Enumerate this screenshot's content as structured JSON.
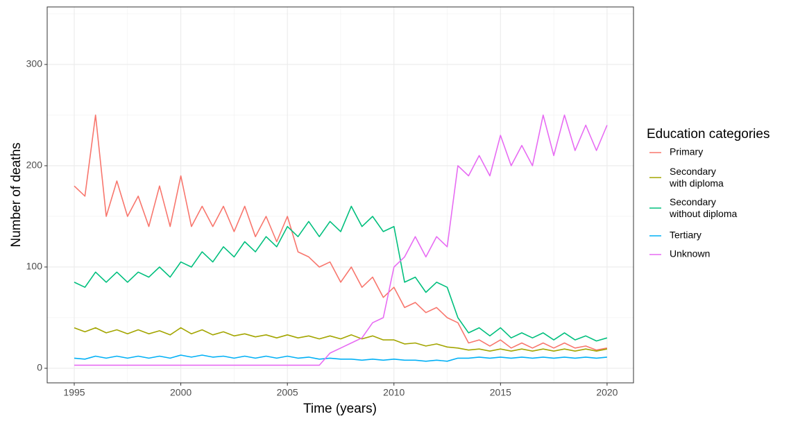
{
  "chart_data": {
    "type": "line",
    "x_label": "Time (years)",
    "y_label": "Number of deaths",
    "legend_title": "Education categories",
    "legend_position": "right",
    "x": [
      1995,
      1995.5,
      1996,
      1996.5,
      1997,
      1997.5,
      1998,
      1998.5,
      1999,
      1999.5,
      2000,
      2000.5,
      2001,
      2001.5,
      2002,
      2002.5,
      2003,
      2003.5,
      2004,
      2004.5,
      2005,
      2005.5,
      2006,
      2006.5,
      2007,
      2007.5,
      2008,
      2008.5,
      2009,
      2009.5,
      2010,
      2010.5,
      2011,
      2011.5,
      2012,
      2012.5,
      2013,
      2013.5,
      2014,
      2014.5,
      2015,
      2015.5,
      2016,
      2016.5,
      2017,
      2017.5,
      2018,
      2018.5,
      2019,
      2019.5,
      2020
    ],
    "series": [
      {
        "name": "Primary",
        "color": "#F8766D",
        "values": [
          180,
          170,
          250,
          150,
          185,
          150,
          170,
          140,
          180,
          140,
          190,
          140,
          160,
          140,
          160,
          135,
          160,
          130,
          150,
          125,
          150,
          115,
          110,
          100,
          105,
          85,
          100,
          80,
          90,
          70,
          80,
          60,
          65,
          55,
          60,
          50,
          45,
          25,
          28,
          22,
          28,
          20,
          25,
          20,
          25,
          20,
          25,
          20,
          22,
          18,
          20
        ]
      },
      {
        "name": "Secondary\nwith diploma",
        "color": "#A3A500",
        "values": [
          40,
          36,
          40,
          35,
          38,
          34,
          38,
          34,
          37,
          33,
          40,
          34,
          38,
          33,
          36,
          32,
          34,
          31,
          33,
          30,
          33,
          30,
          32,
          29,
          32,
          29,
          33,
          29,
          32,
          28,
          28,
          24,
          25,
          22,
          24,
          21,
          20,
          18,
          19,
          17,
          19,
          17,
          19,
          17,
          19,
          17,
          19,
          17,
          19,
          17,
          19
        ]
      },
      {
        "name": "Secondary\nwithout diploma",
        "color": "#00BF7D",
        "values": [
          85,
          80,
          95,
          85,
          95,
          85,
          95,
          90,
          100,
          90,
          105,
          100,
          115,
          105,
          120,
          110,
          125,
          115,
          130,
          120,
          140,
          130,
          145,
          130,
          145,
          135,
          160,
          140,
          150,
          135,
          140,
          85,
          90,
          75,
          85,
          80,
          50,
          35,
          40,
          32,
          40,
          30,
          35,
          30,
          35,
          28,
          35,
          28,
          32,
          27,
          30
        ]
      },
      {
        "name": "Tertiary",
        "color": "#00B0F6",
        "values": [
          10,
          9,
          12,
          10,
          12,
          10,
          12,
          10,
          12,
          10,
          13,
          11,
          13,
          11,
          12,
          10,
          12,
          10,
          12,
          10,
          12,
          10,
          11,
          9,
          10,
          9,
          9,
          8,
          9,
          8,
          9,
          8,
          8,
          7,
          8,
          7,
          10,
          10,
          11,
          10,
          11,
          10,
          11,
          10,
          11,
          10,
          11,
          10,
          11,
          10,
          11
        ]
      },
      {
        "name": "Unknown",
        "color": "#E76BF3",
        "values": [
          3,
          3,
          3,
          3,
          3,
          3,
          3,
          3,
          3,
          3,
          3,
          3,
          3,
          3,
          3,
          3,
          3,
          3,
          3,
          3,
          3,
          3,
          3,
          3,
          15,
          20,
          25,
          30,
          45,
          50,
          100,
          110,
          130,
          110,
          130,
          120,
          200,
          190,
          210,
          190,
          230,
          200,
          220,
          200,
          250,
          210,
          250,
          215,
          240,
          215,
          240
        ]
      }
    ],
    "xlim": [
      1993.73,
      2021.24
    ],
    "xticks": [
      1995,
      2000,
      2005,
      2010,
      2015,
      2020
    ],
    "x_minor_ticks": [
      1997.5,
      2002.5,
      2007.5,
      2012.5,
      2017.5
    ],
    "ylim": [
      -14.4,
      356.8
    ],
    "yticks": [
      0,
      100,
      200,
      300
    ],
    "y_minor_ticks": [
      50,
      150,
      250,
      350
    ],
    "grid": true
  }
}
